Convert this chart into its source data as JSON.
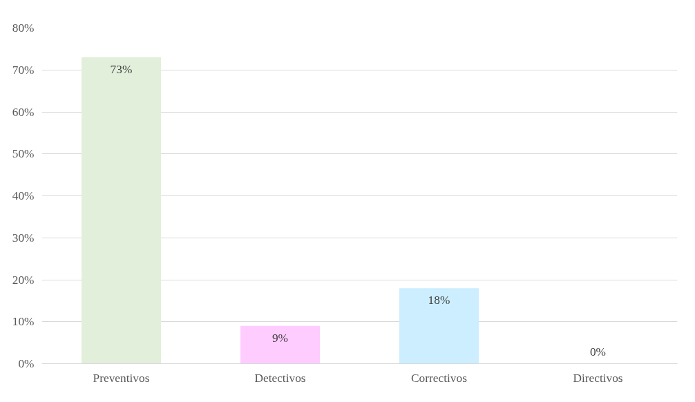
{
  "chart_data": {
    "type": "bar",
    "categories": [
      "Preventivos",
      "Detectivos",
      "Correctivos",
      "Directivos"
    ],
    "values": [
      73,
      9,
      18,
      0
    ],
    "colors": [
      "#e2efda",
      "#ffccff",
      "#cceeff",
      "#dddddd"
    ],
    "value_labels": [
      "73%",
      "9%",
      "18%",
      "0%"
    ],
    "ylim": [
      0,
      80
    ],
    "yticks": [
      {
        "value": 0,
        "label": "0%"
      },
      {
        "value": 10,
        "label": "10%"
      },
      {
        "value": 20,
        "label": "20%"
      },
      {
        "value": 30,
        "label": "30%"
      },
      {
        "value": 40,
        "label": "40%"
      },
      {
        "value": 50,
        "label": "50%"
      },
      {
        "value": 60,
        "label": "60%"
      },
      {
        "value": 70,
        "label": "70%"
      },
      {
        "value": 80,
        "label": "80%"
      }
    ],
    "grid": "y"
  }
}
